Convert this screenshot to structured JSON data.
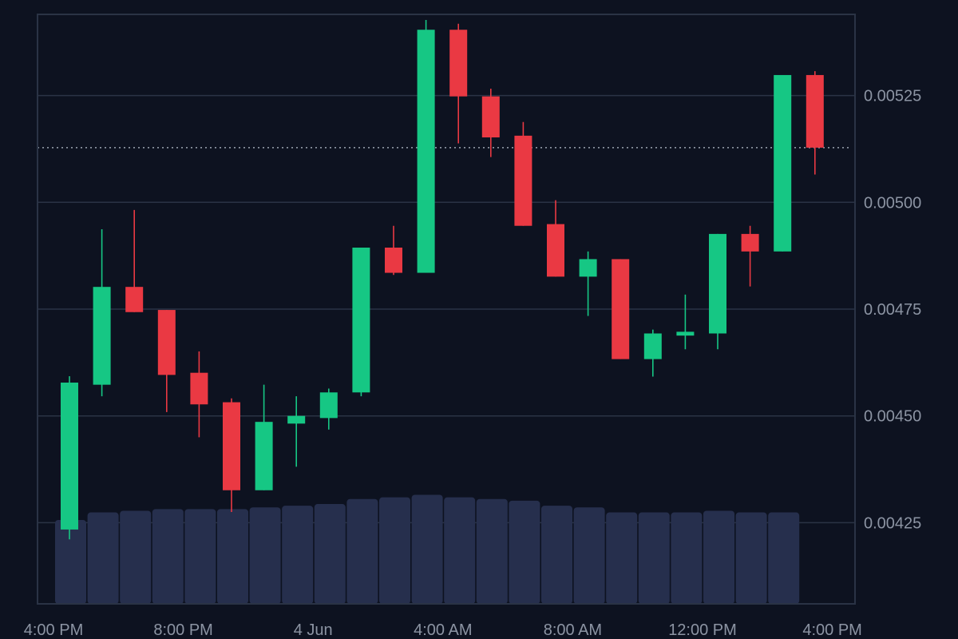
{
  "colors": {
    "background": "#0d1220",
    "plot_border": "#2a3345",
    "gridline": "#2a3345",
    "last_price_line": "#b7c0cc",
    "up": "#16c784",
    "down": "#ea3943",
    "volume": "#262f4d",
    "axis_text": "#8c94a3"
  },
  "chart_data": {
    "type": "candlestick",
    "y_axis": {
      "side": "right",
      "ticks": [
        "0.00425",
        "0.00450",
        "0.00475",
        "0.00500",
        "0.00525"
      ],
      "range": [
        0.00406,
        0.00544
      ]
    },
    "x_axis": {
      "ticks": [
        "4:00 PM",
        "8:00 PM",
        "4 Jun",
        "4:00 AM",
        "8:00 AM",
        "12:00 PM",
        "4:00 PM"
      ]
    },
    "grid": "horizontal",
    "last_price": 0.005128,
    "candles": [
      {
        "open": 0.004234,
        "high": 0.004593,
        "low": 0.004211,
        "close": 0.004578,
        "direction": "up"
      },
      {
        "open": 0.004573,
        "high": 0.004937,
        "low": 0.004546,
        "close": 0.004802,
        "direction": "up"
      },
      {
        "open": 0.004802,
        "high": 0.004982,
        "low": 0.004743,
        "close": 0.004743,
        "direction": "down"
      },
      {
        "open": 0.004748,
        "high": 0.004748,
        "low": 0.004509,
        "close": 0.004596,
        "direction": "down"
      },
      {
        "open": 0.004601,
        "high": 0.004651,
        "low": 0.00445,
        "close": 0.004527,
        "direction": "down"
      },
      {
        "open": 0.004532,
        "high": 0.004541,
        "low": 0.004275,
        "close": 0.004326,
        "direction": "down"
      },
      {
        "open": 0.004326,
        "high": 0.004573,
        "low": 0.004326,
        "close": 0.004486,
        "direction": "up"
      },
      {
        "open": 0.004482,
        "high": 0.004546,
        "low": 0.004381,
        "close": 0.0045,
        "direction": "up"
      },
      {
        "open": 0.004495,
        "high": 0.004564,
        "low": 0.004468,
        "close": 0.004555,
        "direction": "up"
      },
      {
        "open": 0.004555,
        "high": 0.004894,
        "low": 0.004546,
        "close": 0.004894,
        "direction": "up"
      },
      {
        "open": 0.004894,
        "high": 0.004945,
        "low": 0.00483,
        "close": 0.004835,
        "direction": "down"
      },
      {
        "open": 0.004835,
        "high": 0.005427,
        "low": 0.004835,
        "close": 0.005404,
        "direction": "up"
      },
      {
        "open": 0.005404,
        "high": 0.005418,
        "low": 0.005138,
        "close": 0.005248,
        "direction": "down"
      },
      {
        "open": 0.005248,
        "high": 0.005266,
        "low": 0.005106,
        "close": 0.005152,
        "direction": "down"
      },
      {
        "open": 0.005156,
        "high": 0.005188,
        "low": 0.004945,
        "close": 0.004945,
        "direction": "down"
      },
      {
        "open": 0.004949,
        "high": 0.005005,
        "low": 0.004826,
        "close": 0.004826,
        "direction": "down"
      },
      {
        "open": 0.004826,
        "high": 0.004885,
        "low": 0.004734,
        "close": 0.004867,
        "direction": "up"
      },
      {
        "open": 0.004867,
        "high": 0.004867,
        "low": 0.004633,
        "close": 0.004633,
        "direction": "down"
      },
      {
        "open": 0.004633,
        "high": 0.004702,
        "low": 0.004592,
        "close": 0.004693,
        "direction": "up"
      },
      {
        "open": 0.004688,
        "high": 0.004784,
        "low": 0.004656,
        "close": 0.004697,
        "direction": "up"
      },
      {
        "open": 0.004693,
        "high": 0.004926,
        "low": 0.004656,
        "close": 0.004926,
        "direction": "up"
      },
      {
        "open": 0.004926,
        "high": 0.004945,
        "low": 0.004803,
        "close": 0.004885,
        "direction": "down"
      },
      {
        "open": 0.004885,
        "high": 0.005298,
        "low": 0.004885,
        "close": 0.005298,
        "direction": "up"
      },
      {
        "open": 0.005298,
        "high": 0.005307,
        "low": 0.005065,
        "close": 0.005128,
        "direction": "down"
      }
    ],
    "volume_relative": [
      1.0,
      1.09,
      1.11,
      1.13,
      1.13,
      1.13,
      1.15,
      1.17,
      1.19,
      1.25,
      1.27,
      1.3,
      1.27,
      1.25,
      1.23,
      1.17,
      1.15,
      1.09,
      1.09,
      1.09,
      1.11,
      1.09,
      1.09
    ]
  }
}
